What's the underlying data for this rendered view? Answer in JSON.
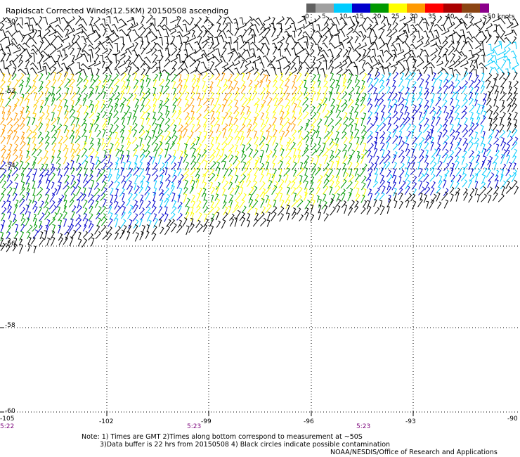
{
  "title": "Rapidscat Corrected Winds(12.5KM) 20150508 ascending",
  "legend": {
    "labels": [
      "0",
      "5",
      "10",
      "15",
      "20",
      "25",
      "30",
      "35",
      "40",
      "45",
      ">50 knots"
    ],
    "colors": [
      "#000000",
      "#606060",
      "#00ccff",
      "#0000cc",
      "#00aa00",
      "#ffff00",
      "#ff9900",
      "#ff0000",
      "#cc0000",
      "#8b4513",
      "#8b008b"
    ]
  },
  "axes": {
    "lat_labels": [
      "-50",
      "-52",
      "-54",
      "-56",
      "-58",
      "-60"
    ],
    "lon_labels": [
      "-105",
      "-102",
      "-99",
      "-96",
      "-93",
      "-90"
    ]
  },
  "times": [
    "5:22",
    "5:23",
    "5:23"
  ],
  "notes": {
    "line1": "Note: 1) Times are GMT 2)Times along bottom correspond to measurement at ~50S",
    "line2": "3)Data buffer is 22 hrs from 20150508 4) Black circles indicate possible contamination"
  },
  "credit": "NOAA/NESDIS/Office of Research and Applications"
}
